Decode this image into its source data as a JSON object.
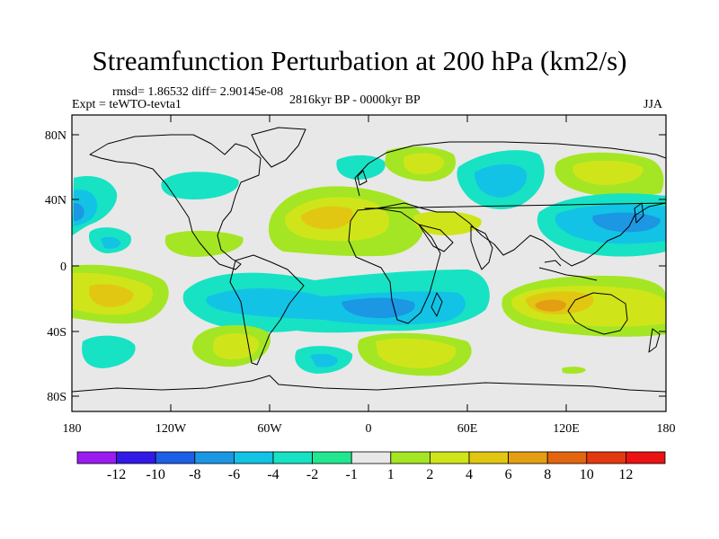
{
  "title": "Streamfunction Perturbation at 200 hPa (km2/s)",
  "stats": "rmsd= 1.86532 diff= 2.90145e-08",
  "experiment": "Expt = teWTO-tevta1",
  "period": "2816kyr BP - 0000kyr BP",
  "season": "JJA",
  "lat_labels": [
    "80N",
    "40N",
    "0",
    "40S",
    "80S"
  ],
  "lon_labels": [
    "180",
    "120W",
    "60W",
    "0",
    "60E",
    "120E",
    "180"
  ],
  "colorbar": {
    "labels": [
      "-12",
      "-10",
      "-8",
      "-6",
      "-4",
      "-2",
      "-1",
      "1",
      "2",
      "4",
      "6",
      "8",
      "10",
      "12"
    ],
    "colors": [
      "#9a1cf0",
      "#3319e8",
      "#1d5fe6",
      "#1c97e3",
      "#12c3e6",
      "#17e2c4",
      "#21e890",
      "#e8e8e8",
      "#a4e623",
      "#cfe51a",
      "#e2c712",
      "#e49e12",
      "#e46510",
      "#e4390f",
      "#ea1212"
    ]
  },
  "ocean_color": "#e8e8e8",
  "frame_color": "#000000"
}
